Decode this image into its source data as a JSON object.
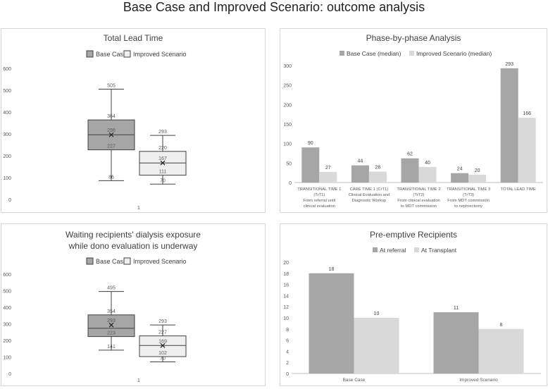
{
  "page": {
    "title": "Base Case and Improved Scenario: outcome analysis"
  },
  "chart_data": [
    {
      "type": "boxplot",
      "title": "Total Lead Time",
      "legend": [
        "Base Case",
        "Improved Scenario"
      ],
      "ylim": [
        0,
        600
      ],
      "yticks": [
        0,
        100,
        200,
        300,
        400,
        500,
        600
      ],
      "xlabel": "1",
      "series": [
        {
          "name": "Base Case",
          "color": "#a6a6a6",
          "min": 86,
          "q1": 227,
          "median": 296,
          "mean": 296,
          "q3": 364,
          "max": 505
        },
        {
          "name": "Improved Scenario",
          "color": "#efefef",
          "min": 70,
          "q1": 111,
          "median": 167,
          "mean": 167,
          "q3": 220,
          "max": 293
        }
      ]
    },
    {
      "type": "bar",
      "title": "Phase-by-phase Analysis",
      "ylim": [
        0,
        300
      ],
      "yticks": [
        0,
        50,
        100,
        150,
        200,
        250,
        300
      ],
      "categories": [
        [
          "TRANSITIONAL TIME 1",
          "(TrT1)",
          "From referral until",
          "clinical evaluation"
        ],
        [
          "CARE TIME 1 (CrT1)",
          "Clinical Evaluation and",
          "Diagnostic Workup"
        ],
        [
          "TRANSITIONAL TIME 2",
          "(TrT2)",
          "From clinical evaluation",
          "to MDT commission"
        ],
        [
          "TRANSITIONAL TIME 3",
          "(TrT3)",
          "From MDT commission",
          "to nephrectomy"
        ],
        [
          "TOTAL LEAD TIME"
        ]
      ],
      "series": [
        {
          "name": "Base Case (median)",
          "color": "#a6a6a6",
          "values": [
            90,
            44,
            62,
            24,
            293
          ]
        },
        {
          "name": "Improved Scenario (median)",
          "color": "#d9d9d9",
          "values": [
            27,
            28,
            40,
            20,
            166
          ]
        }
      ]
    },
    {
      "type": "boxplot",
      "title": [
        "Waiting recipients' dialysis exposure",
        "while dono evaluation is underway"
      ],
      "legend": [
        "Base Case",
        "Improved Scenario"
      ],
      "ylim": [
        0,
        600
      ],
      "yticks": [
        0,
        100,
        200,
        300,
        400,
        500,
        600
      ],
      "xlabel": "1",
      "series": [
        {
          "name": "Base Case",
          "color": "#a6a6a6",
          "min": 141,
          "q1": 223,
          "median": 273,
          "mean": 293,
          "q3": 354,
          "max": 495,
          "labels": [
            495,
            354,
            293,
            223,
            141
          ]
        },
        {
          "name": "Improved Scenario",
          "color": "#efefef",
          "min": 70,
          "q1": 102,
          "median": 169,
          "mean": 169,
          "q3": 227,
          "max": 293,
          "labels": [
            293,
            227,
            169,
            102,
            70
          ]
        }
      ]
    },
    {
      "type": "bar",
      "title": "Pre-emptive Recipients",
      "ylim": [
        0,
        20
      ],
      "yticks": [
        0,
        2,
        4,
        6,
        8,
        10,
        12,
        14,
        16,
        18,
        20
      ],
      "categories": [
        [
          "Base Case"
        ],
        [
          "Improved Scenario"
        ]
      ],
      "series": [
        {
          "name": "At referral",
          "color": "#a6a6a6",
          "values": [
            18,
            11
          ]
        },
        {
          "name": "At Transplant",
          "color": "#d9d9d9",
          "values": [
            10,
            8
          ]
        }
      ]
    }
  ]
}
